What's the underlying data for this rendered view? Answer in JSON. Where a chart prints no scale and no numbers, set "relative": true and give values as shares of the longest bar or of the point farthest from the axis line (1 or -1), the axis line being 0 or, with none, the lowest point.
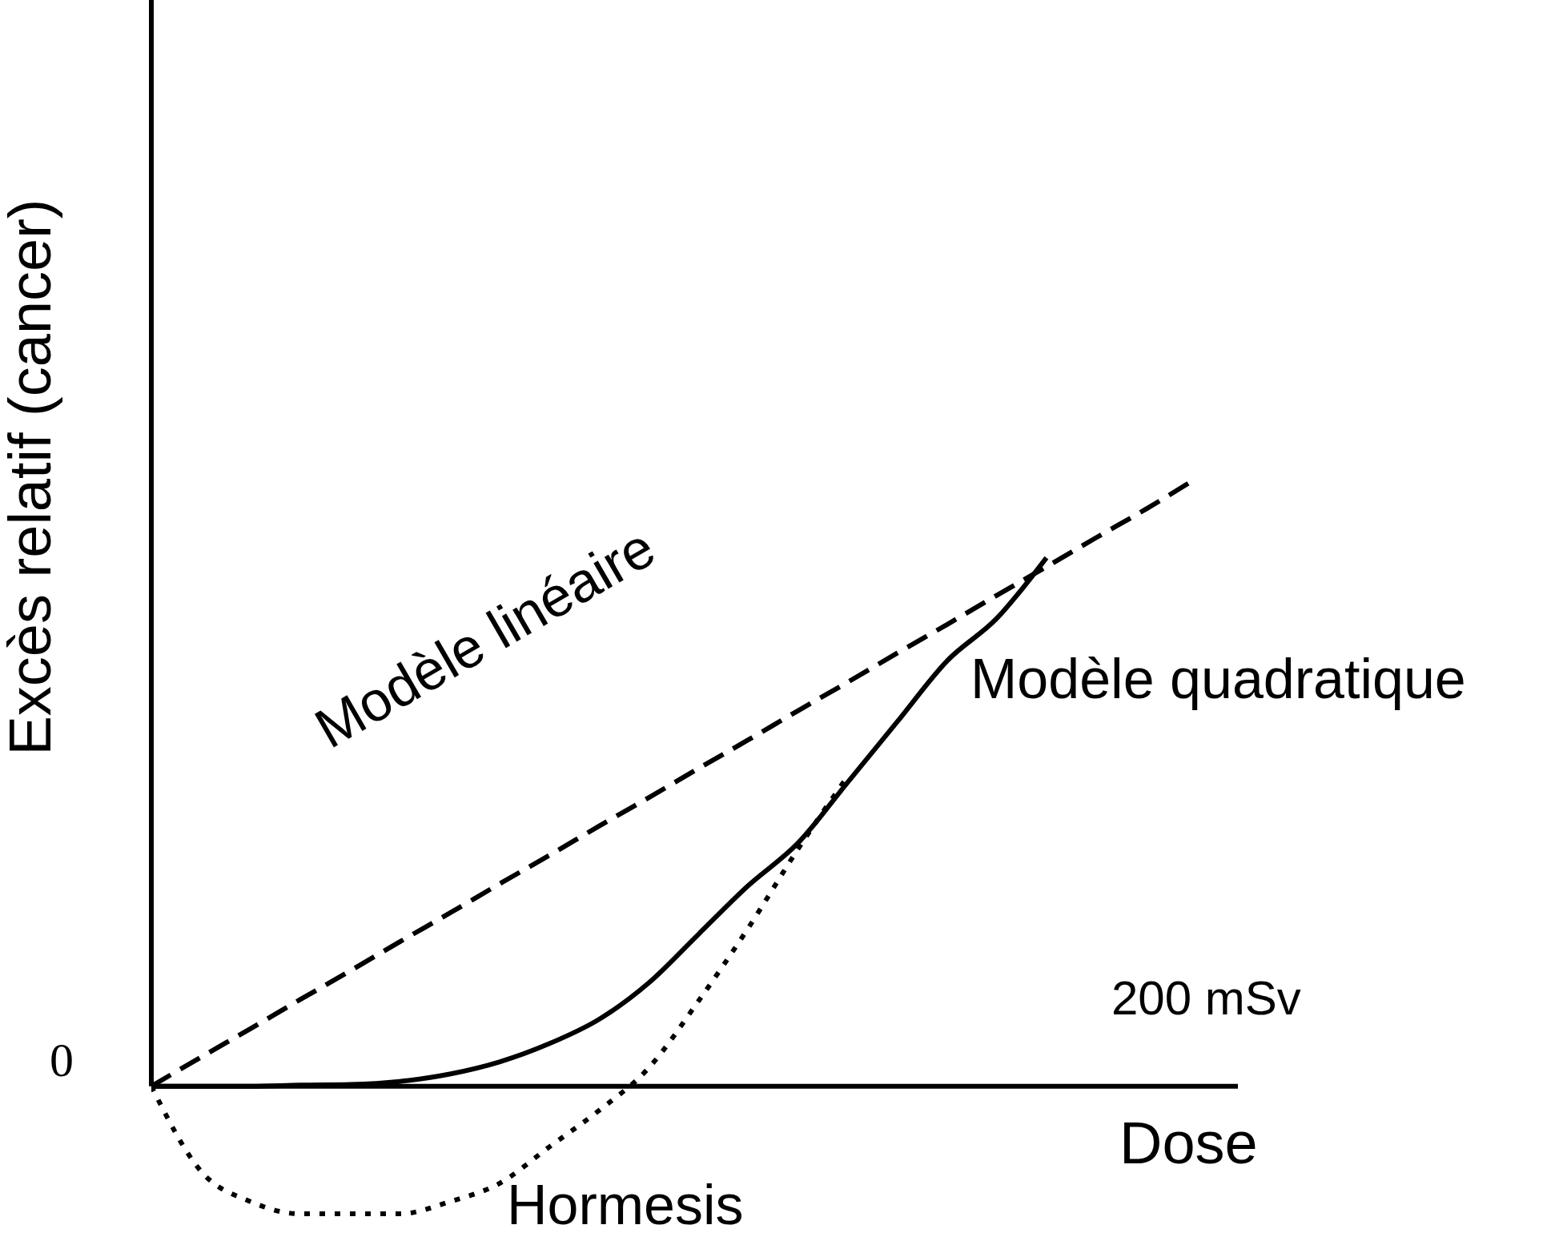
{
  "chart_data": {
    "type": "line",
    "relative": true,
    "xlabel": "Dose",
    "ylabel": "Excès relatif (cancer)",
    "annotations": [
      "0",
      "200 mSv"
    ],
    "categories": [
      null,
      null,
      null,
      null,
      null,
      null,
      null,
      null,
      null,
      null,
      null,
      null,
      null,
      null,
      null,
      null,
      null,
      null,
      null,
      null,
      null,
      null
    ],
    "marker": "none",
    "series": [
      {
        "name": "Modèle linéaire",
        "color": "#000000",
        "line_style": "dashed",
        "values": [
          0,
          0.048,
          0.095,
          0.143,
          0.19,
          0.238,
          0.285,
          0.333,
          0.38,
          0.428,
          0.475,
          0.523,
          0.57,
          0.618,
          0.665,
          0.713,
          0.76,
          0.808,
          0.855,
          0.903,
          0.95,
          1.0
        ]
      },
      {
        "name": "Modèle quadratique",
        "color": "#000000",
        "line_style": "solid",
        "values": [
          0,
          0,
          0,
          0.002,
          0.003,
          0.008,
          0.02,
          0.04,
          0.07,
          0.11,
          0.17,
          0.25,
          0.33,
          0.4,
          0.5,
          0.6,
          0.7,
          0.77,
          0.87,
          null,
          null,
          null
        ]
      },
      {
        "name": "Hormesis",
        "color": "#000000",
        "line_style": "dotted",
        "values": [
          0,
          -0.14,
          -0.19,
          -0.21,
          -0.21,
          -0.21,
          -0.19,
          -0.16,
          -0.1,
          -0.04,
          0.03,
          0.14,
          0.26,
          0.39,
          0.51,
          null,
          null,
          null,
          null,
          null,
          null,
          null
        ]
      }
    ]
  }
}
